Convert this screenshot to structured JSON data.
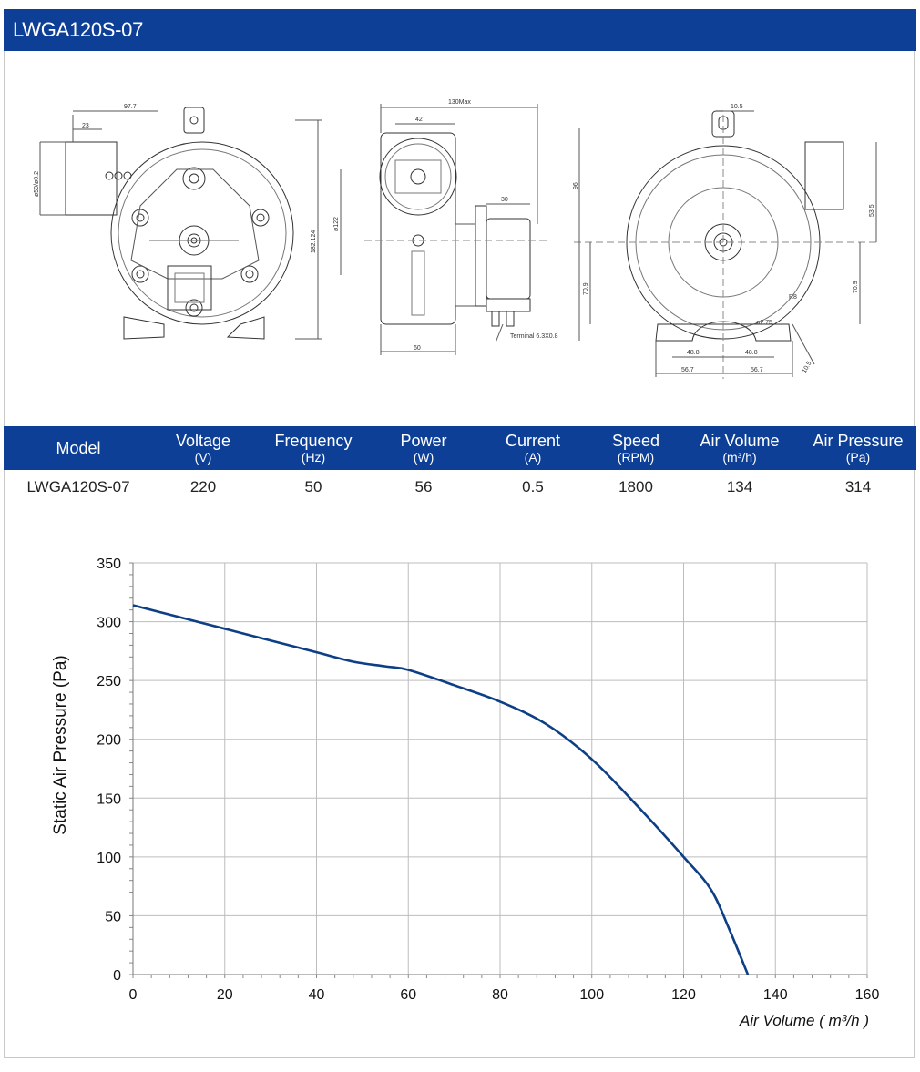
{
  "page": {
    "title": "LWGA120S-07"
  },
  "drawings": {
    "side": {
      "dim_width": "97.7",
      "dim_inlet": "23",
      "dim_outlet": "ø50/ø0.2",
      "dim_height": "182.124"
    },
    "profile": {
      "dim_total": "130Max",
      "dim_top": "42",
      "dim_dia": "ø122",
      "dim_motor": "30",
      "dim_bottom": "60",
      "terminal": "Terminal 6.3X0.8"
    },
    "front": {
      "dim_tab": "10.5",
      "dim_height_left": "96",
      "dim_outlet": "53.5",
      "dim_center_left": "70.9",
      "dim_center_right": "70.9",
      "dim_slot": "R8",
      "dim_hole": "ø2.75",
      "dim_foot_l": "48.8",
      "dim_foot_r": "48.8",
      "dim_base_l": "56.7",
      "dim_base_r": "56.7",
      "dim_foot_angle": "10.5"
    }
  },
  "specs": {
    "headers": [
      {
        "name": "Model",
        "unit": ""
      },
      {
        "name": "Voltage",
        "unit": "(V)"
      },
      {
        "name": "Frequency",
        "unit": "(Hz)"
      },
      {
        "name": "Power",
        "unit": "(W)"
      },
      {
        "name": "Current",
        "unit": "(A)"
      },
      {
        "name": "Speed",
        "unit": "(RPM)"
      },
      {
        "name": "Air Volume",
        "unit": "(m³/h)"
      },
      {
        "name": "Air Pressure",
        "unit": "(Pa)"
      }
    ],
    "row": [
      "LWGA120S-07",
      "220",
      "50",
      "56",
      "0.5",
      "1800",
      "134",
      "314"
    ]
  },
  "colors": {
    "brand": "#0d3f96",
    "curve": "#0d3f86",
    "grid": "#bdbdbd"
  },
  "chart_data": {
    "type": "line",
    "xlabel": "Air Volume ( m³/h )",
    "ylabel": "Static Air Pressure  (Pa)",
    "xlim": [
      0,
      160
    ],
    "ylim": [
      0,
      350
    ],
    "x_ticks": [
      0,
      20,
      40,
      60,
      80,
      100,
      120,
      140,
      160
    ],
    "y_ticks": [
      0,
      50,
      100,
      150,
      200,
      250,
      300,
      350
    ],
    "grid": "vertical and horizontal",
    "series": [
      {
        "x": [
          0,
          10,
          20,
          30,
          40,
          48,
          55,
          60,
          70,
          80,
          90,
          100,
          110,
          120,
          126,
          130,
          134
        ],
        "y": [
          314,
          304,
          294,
          284,
          274,
          266,
          262,
          259,
          246,
          232,
          213,
          183,
          143,
          100,
          72,
          38,
          0
        ]
      }
    ]
  }
}
